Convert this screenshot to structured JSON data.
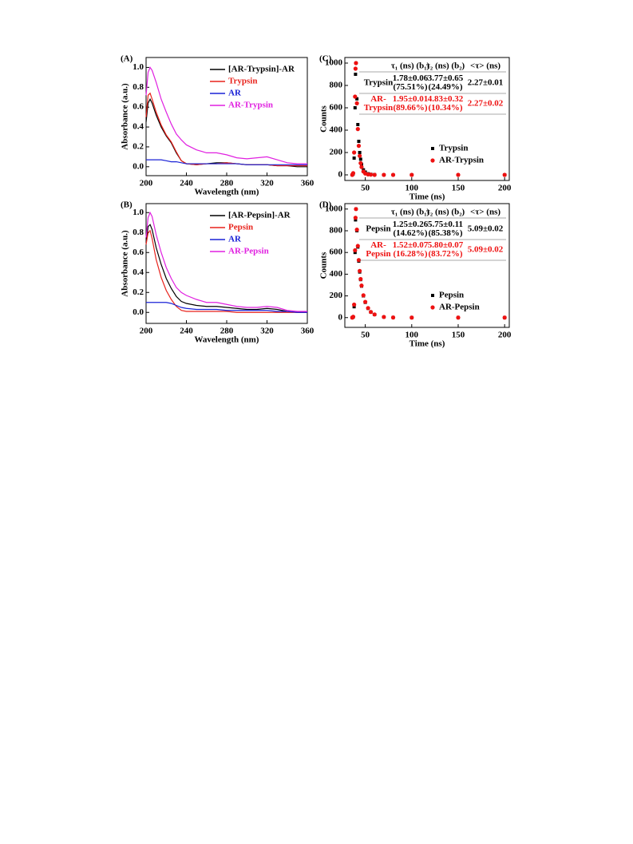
{
  "chart_data": [
    {
      "type": "line",
      "panel_label": "(A)",
      "x_label": "Wavelength (nm)",
      "y_label": "Absorbance (a.u.)",
      "x": [
        200,
        202,
        204,
        206,
        210,
        215,
        220,
        225,
        230,
        235,
        240,
        250,
        260,
        270,
        280,
        290,
        300,
        310,
        320,
        330,
        340,
        350,
        360
      ],
      "series": [
        {
          "name": "[AR-Trypsin]-AR",
          "color": "#000000",
          "values": [
            0.45,
            0.64,
            0.68,
            0.64,
            0.52,
            0.4,
            0.31,
            0.24,
            0.14,
            0.06,
            0.03,
            0.02,
            0.03,
            0.04,
            0.04,
            0.03,
            0.02,
            0.02,
            0.02,
            0.01,
            0.01,
            0.0,
            0.0
          ]
        },
        {
          "name": "Trypsin",
          "color": "#e8221b",
          "values": [
            0.5,
            0.72,
            0.74,
            0.68,
            0.55,
            0.42,
            0.32,
            0.25,
            0.15,
            0.06,
            0.03,
            0.02,
            0.03,
            0.03,
            0.04,
            0.03,
            0.02,
            0.02,
            0.02,
            0.01,
            0.01,
            0.01,
            0.01
          ]
        },
        {
          "name": "AR",
          "color": "#1a22d6",
          "values": [
            0.07,
            0.07,
            0.07,
            0.07,
            0.07,
            0.07,
            0.06,
            0.05,
            0.05,
            0.04,
            0.03,
            0.03,
            0.03,
            0.03,
            0.03,
            0.03,
            0.02,
            0.02,
            0.02,
            0.02,
            0.02,
            0.02,
            0.02
          ]
        },
        {
          "name": "AR-Trypsin",
          "color": "#e020e0",
          "values": [
            0.72,
            0.95,
            1.0,
            0.97,
            0.85,
            0.68,
            0.55,
            0.43,
            0.33,
            0.27,
            0.22,
            0.17,
            0.14,
            0.14,
            0.12,
            0.09,
            0.08,
            0.09,
            0.1,
            0.07,
            0.04,
            0.03,
            0.03
          ]
        }
      ],
      "xlim": [
        200,
        360
      ],
      "xticks": [
        200,
        240,
        280,
        320,
        360
      ],
      "ylim": [
        -0.09,
        1.1
      ],
      "yticks": [
        {
          "value": 0,
          "label": "0.0"
        },
        {
          "value": 0.2,
          "label": "0.2"
        },
        {
          "value": 0.4,
          "label": "0.4"
        },
        {
          "value": 0.6,
          "label": "0.6"
        },
        {
          "value": 0.8,
          "label": "0.8"
        },
        {
          "value": 1,
          "label": "1.0"
        }
      ],
      "legend": "upper right"
    },
    {
      "type": "scatter",
      "panel_label": "(C)",
      "x_label": "Time (ns)",
      "y_label": "Counts",
      "x": [
        36,
        37,
        38,
        39,
        39.5,
        40,
        41,
        42,
        43,
        44,
        45,
        46,
        48,
        50,
        53,
        56,
        60,
        70,
        80,
        100,
        150,
        200
      ],
      "series": [
        {
          "name": "Trypsin",
          "color": "#000000",
          "marker": "square",
          "values": [
            0,
            10,
            150,
            600,
            900,
            1000,
            680,
            450,
            300,
            200,
            140,
            95,
            45,
            25,
            10,
            5,
            2,
            0,
            0,
            0,
            0,
            0
          ]
        },
        {
          "name": "AR-Trypsin",
          "color": "#ee1111",
          "marker": "circle",
          "values": [
            0,
            15,
            200,
            700,
            950,
            1000,
            640,
            410,
            260,
            170,
            105,
            70,
            30,
            12,
            4,
            2,
            0,
            0,
            0,
            0,
            0,
            0
          ]
        }
      ],
      "xlim": [
        28,
        205
      ],
      "xticks": [
        50,
        100,
        150,
        200
      ],
      "ylim": [
        -50,
        1050
      ],
      "yticks": [
        0,
        200,
        400,
        600,
        800,
        1000
      ],
      "legend": "lower right",
      "table": {
        "header": [
          "τ₁ (ns) (b₁)",
          "τ₂ (ns) (b₂)",
          "<τ> (ns)"
        ],
        "rows": [
          {
            "label": [
              "Trypsin"
            ],
            "cells": [
              [
                "1.78±0.06",
                "(75.51%)"
              ],
              [
                "3.77±0.65",
                "(24.49%)"
              ],
              [
                "2.27±0.01"
              ]
            ],
            "color": "#000000"
          },
          {
            "label": [
              "AR-",
              "Trypsin"
            ],
            "cells": [
              [
                "1.95±0.01",
                "(89.66%)"
              ],
              [
                "4.83±0.32",
                "(10.34%)"
              ],
              [
                "2.27±0.02"
              ]
            ],
            "color": "#ee1111"
          }
        ]
      }
    },
    {
      "type": "line",
      "panel_label": "(B)",
      "x_label": "Wavelength (nm)",
      "y_label": "Absorbance (a.u.)",
      "x": [
        200,
        202,
        204,
        206,
        210,
        215,
        220,
        225,
        230,
        235,
        240,
        250,
        260,
        270,
        280,
        290,
        300,
        310,
        320,
        330,
        340,
        350,
        360
      ],
      "series": [
        {
          "name": "[AR-Pepsin]-AR",
          "color": "#000000",
          "values": [
            0.7,
            0.86,
            0.88,
            0.83,
            0.65,
            0.48,
            0.34,
            0.24,
            0.16,
            0.11,
            0.09,
            0.07,
            0.06,
            0.06,
            0.05,
            0.04,
            0.03,
            0.03,
            0.04,
            0.03,
            0.01,
            0.0,
            0.0
          ]
        },
        {
          "name": "Pepsin",
          "color": "#e8221b",
          "values": [
            0.68,
            0.8,
            0.82,
            0.74,
            0.53,
            0.35,
            0.22,
            0.13,
            0.06,
            0.02,
            0.01,
            0.01,
            0.01,
            0.01,
            0.01,
            0.0,
            0.0,
            0.0,
            0.0,
            0.0,
            0.0,
            0.0,
            0.0
          ]
        },
        {
          "name": "AR",
          "color": "#1a22d6",
          "values": [
            0.1,
            0.1,
            0.1,
            0.1,
            0.1,
            0.1,
            0.1,
            0.09,
            0.07,
            0.05,
            0.04,
            0.03,
            0.03,
            0.03,
            0.02,
            0.02,
            0.02,
            0.02,
            0.02,
            0.01,
            0.01,
            0.0,
            0.0
          ]
        },
        {
          "name": "AR-Pepsin",
          "color": "#e020e0",
          "values": [
            0.75,
            0.95,
            1.0,
            0.96,
            0.78,
            0.6,
            0.45,
            0.34,
            0.25,
            0.2,
            0.17,
            0.13,
            0.1,
            0.1,
            0.08,
            0.06,
            0.05,
            0.05,
            0.06,
            0.05,
            0.02,
            0.01,
            0.01
          ]
        }
      ],
      "xlim": [
        200,
        360
      ],
      "xticks": [
        200,
        240,
        280,
        320,
        360
      ],
      "ylim": [
        -0.11,
        1.09
      ],
      "yticks": [
        {
          "value": 0,
          "label": "0.0"
        },
        {
          "value": 0.2,
          "label": "0.2"
        },
        {
          "value": 0.4,
          "label": "0.4"
        },
        {
          "value": 0.6,
          "label": "0.6"
        },
        {
          "value": 0.8,
          "label": "0.8"
        },
        {
          "value": 1,
          "label": "1.0"
        }
      ],
      "legend": "upper right"
    },
    {
      "type": "scatter",
      "panel_label": "(D)",
      "x_label": "Time (ns)",
      "y_label": "Counts",
      "x": [
        36,
        37,
        38,
        39,
        39.5,
        40,
        41,
        42,
        43,
        44,
        45,
        46,
        48,
        50,
        53,
        56,
        60,
        70,
        80,
        100,
        150,
        200
      ],
      "series": [
        {
          "name": "Pepsin",
          "color": "#000000",
          "marker": "square",
          "values": [
            0,
            5,
            100,
            600,
            900,
            1000,
            800,
            650,
            520,
            420,
            350,
            290,
            200,
            140,
            85,
            50,
            28,
            5,
            1,
            0,
            0,
            0
          ]
        },
        {
          "name": "AR-Pepsin",
          "color": "#ee1111",
          "marker": "circle",
          "values": [
            0,
            8,
            120,
            620,
            920,
            1000,
            810,
            660,
            530,
            430,
            355,
            295,
            205,
            145,
            88,
            52,
            29,
            6,
            1,
            0,
            0,
            0
          ]
        }
      ],
      "xlim": [
        28,
        205
      ],
      "xticks": [
        50,
        100,
        150,
        200
      ],
      "ylim": [
        -90,
        1050
      ],
      "yticks": [
        0,
        200,
        400,
        600,
        800,
        1000
      ],
      "legend": "lower right",
      "table": {
        "header": [
          "τ₁ (ns) (b₁)",
          "τ₂ (ns) (b₂)",
          "<τ> (ns)"
        ],
        "rows": [
          {
            "label": [
              "Pepsin"
            ],
            "cells": [
              [
                "1.25±0.26",
                "(14.62%)"
              ],
              [
                "5.75±0.11",
                "(85.38%)"
              ],
              [
                "5.09±0.02"
              ]
            ],
            "color": "#000000"
          },
          {
            "label": [
              "AR-",
              "Pepsin"
            ],
            "cells": [
              [
                "1.52±0.07",
                "(16.28%)"
              ],
              [
                "5.80±0.07",
                "(83.72%)"
              ],
              [
                "5.09±0.02"
              ]
            ],
            "color": "#ee1111"
          }
        ]
      }
    }
  ]
}
